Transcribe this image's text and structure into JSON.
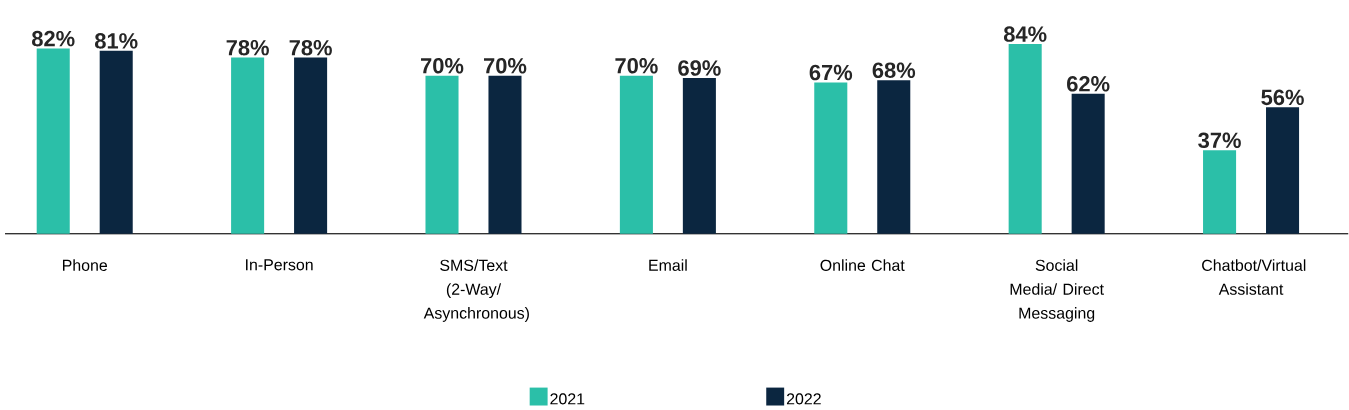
{
  "chart_data": {
    "type": "bar",
    "categories": [
      "Phone",
      "In-Person",
      "SMS/Text (2-Way/ Asynchronous)",
      "Email",
      "Online Chat",
      "Social Media/ Direct Messaging",
      "Chatbot/Virtual Assistant"
    ],
    "series": [
      {
        "name": "2021",
        "color": "#2bbfa8",
        "values": [
          82,
          78,
          70,
          70,
          67,
          84,
          37
        ],
        "value_labels": [
          "82%",
          "78%",
          "70%",
          "70%",
          "67%",
          "84%",
          "37%"
        ]
      },
      {
        "name": "2022",
        "color": "#0b2640",
        "values": [
          81,
          78,
          70,
          69,
          68,
          62,
          56
        ],
        "value_labels": [
          "81%",
          "78%",
          "70%",
          "69%",
          "68%",
          "62%",
          "56%"
        ]
      }
    ],
    "legend": "bottom"
  }
}
